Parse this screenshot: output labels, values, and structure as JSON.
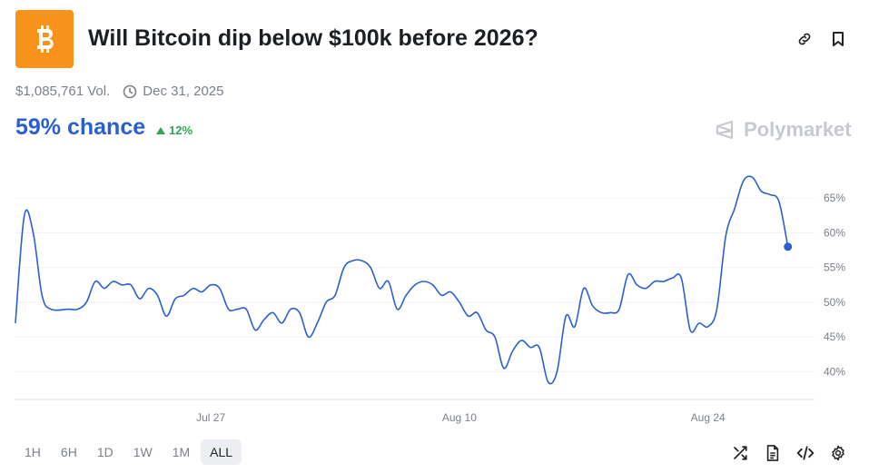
{
  "market": {
    "title": "Will Bitcoin dip below $100k before 2026?",
    "volume": "$1,085,761 Vol.",
    "end_date": "Dec 31, 2025",
    "chance": "59% chance",
    "delta": "12%",
    "brand": "Polymarket"
  },
  "colors": {
    "accent": "#2b5fd0",
    "up": "#2ea35a",
    "bitcoin": "#f7931a",
    "line": "#2b5fd0"
  },
  "icons": {
    "logo": "bitcoin-icon",
    "link": "link-icon",
    "bookmark": "bookmark-icon",
    "clock": "clock-icon",
    "shuffle": "shuffle-icon",
    "document": "document-icon",
    "embed": "code-icon",
    "settings": "gear-icon"
  },
  "time_ranges": [
    "1H",
    "6H",
    "1D",
    "1W",
    "1M",
    "ALL"
  ],
  "selected_range": "ALL",
  "chart_data": {
    "type": "line",
    "title": "",
    "xlabel": "",
    "ylabel": "",
    "x_ticks": [
      "Jul 27",
      "Aug 10",
      "Aug 24"
    ],
    "y_ticks": [
      "40%",
      "45%",
      "50%",
      "55%",
      "60%",
      "65%"
    ],
    "ylim": [
      36,
      70
    ],
    "grid": "horizontal",
    "x_start": "2025-07-16",
    "x_end": "2025-08-30",
    "series": [
      {
        "values": [
          [
            "2025-07-16",
            47.0
          ],
          [
            "2025-07-16T12",
            62.5
          ],
          [
            "2025-07-17",
            60.0
          ],
          [
            "2025-07-17T12",
            51.0
          ],
          [
            "2025-07-18",
            49.0
          ],
          [
            "2025-07-19",
            49.0
          ],
          [
            "2025-07-19T12",
            49.0
          ],
          [
            "2025-07-20",
            50.0
          ],
          [
            "2025-07-20T12",
            53.0
          ],
          [
            "2025-07-21",
            52.0
          ],
          [
            "2025-07-21T12",
            53.0
          ],
          [
            "2025-07-22",
            52.5
          ],
          [
            "2025-07-22T12",
            52.5
          ],
          [
            "2025-07-23",
            50.5
          ],
          [
            "2025-07-23T12",
            52.0
          ],
          [
            "2025-07-24",
            51.0
          ],
          [
            "2025-07-24T12",
            48.0
          ],
          [
            "2025-07-25",
            50.5
          ],
          [
            "2025-07-25T12",
            51.0
          ],
          [
            "2025-07-26",
            52.0
          ],
          [
            "2025-07-26T12",
            51.5
          ],
          [
            "2025-07-27",
            52.5
          ],
          [
            "2025-07-27T12",
            52.0
          ],
          [
            "2025-07-28",
            49.0
          ],
          [
            "2025-07-28T12",
            49.0
          ],
          [
            "2025-07-29",
            49.0
          ],
          [
            "2025-07-29T12",
            46.0
          ],
          [
            "2025-07-30",
            47.5
          ],
          [
            "2025-07-30T12",
            48.5
          ],
          [
            "2025-07-31",
            47.0
          ],
          [
            "2025-07-31T12",
            49.0
          ],
          [
            "2025-08-01",
            48.5
          ],
          [
            "2025-08-01T12",
            45.0
          ],
          [
            "2025-08-02",
            47.0
          ],
          [
            "2025-08-02T12",
            50.0
          ],
          [
            "2025-08-03",
            51.0
          ],
          [
            "2025-08-03T12",
            55.0
          ],
          [
            "2025-08-04",
            56.0
          ],
          [
            "2025-08-04T12",
            56.0
          ],
          [
            "2025-08-05",
            55.0
          ],
          [
            "2025-08-05T12",
            52.0
          ],
          [
            "2025-08-06",
            53.0
          ],
          [
            "2025-08-06T12",
            49.0
          ],
          [
            "2025-08-07",
            51.0
          ],
          [
            "2025-08-07T12",
            52.5
          ],
          [
            "2025-08-08",
            53.0
          ],
          [
            "2025-08-08T12",
            52.5
          ],
          [
            "2025-08-09",
            51.0
          ],
          [
            "2025-08-09T12",
            51.5
          ],
          [
            "2025-08-10",
            50.0
          ],
          [
            "2025-08-10T12",
            48.0
          ],
          [
            "2025-08-11",
            48.5
          ],
          [
            "2025-08-11T12",
            46.0
          ],
          [
            "2025-08-12",
            45.0
          ],
          [
            "2025-08-12T12",
            40.5
          ],
          [
            "2025-08-13",
            43.0
          ],
          [
            "2025-08-13T12",
            44.5
          ],
          [
            "2025-08-14",
            43.5
          ],
          [
            "2025-08-14T12",
            43.5
          ],
          [
            "2025-08-15",
            38.5
          ],
          [
            "2025-08-15T12",
            40.0
          ],
          [
            "2025-08-16",
            48.0
          ],
          [
            "2025-08-16T12",
            46.5
          ],
          [
            "2025-08-17",
            52.0
          ],
          [
            "2025-08-17T12",
            49.5
          ],
          [
            "2025-08-18",
            48.5
          ],
          [
            "2025-08-18T12",
            48.5
          ],
          [
            "2025-08-19",
            49.0
          ],
          [
            "2025-08-19T12",
            54.0
          ],
          [
            "2025-08-20",
            52.5
          ],
          [
            "2025-08-20T12",
            52.0
          ],
          [
            "2025-08-21",
            53.0
          ],
          [
            "2025-08-21T12",
            53.0
          ],
          [
            "2025-08-22",
            53.5
          ],
          [
            "2025-08-22T12",
            53.5
          ],
          [
            "2025-08-23",
            46.0
          ],
          [
            "2025-08-23T12",
            47.0
          ],
          [
            "2025-08-24",
            46.5
          ],
          [
            "2025-08-24T12",
            49.0
          ],
          [
            "2025-08-25",
            59.5
          ],
          [
            "2025-08-25T12",
            63.5
          ],
          [
            "2025-08-26",
            67.5
          ],
          [
            "2025-08-26T12",
            68.0
          ],
          [
            "2025-08-27",
            66.0
          ],
          [
            "2025-08-27T12",
            65.5
          ],
          [
            "2025-08-28",
            64.5
          ],
          [
            "2025-08-28T12",
            58.0
          ]
        ]
      }
    ]
  }
}
